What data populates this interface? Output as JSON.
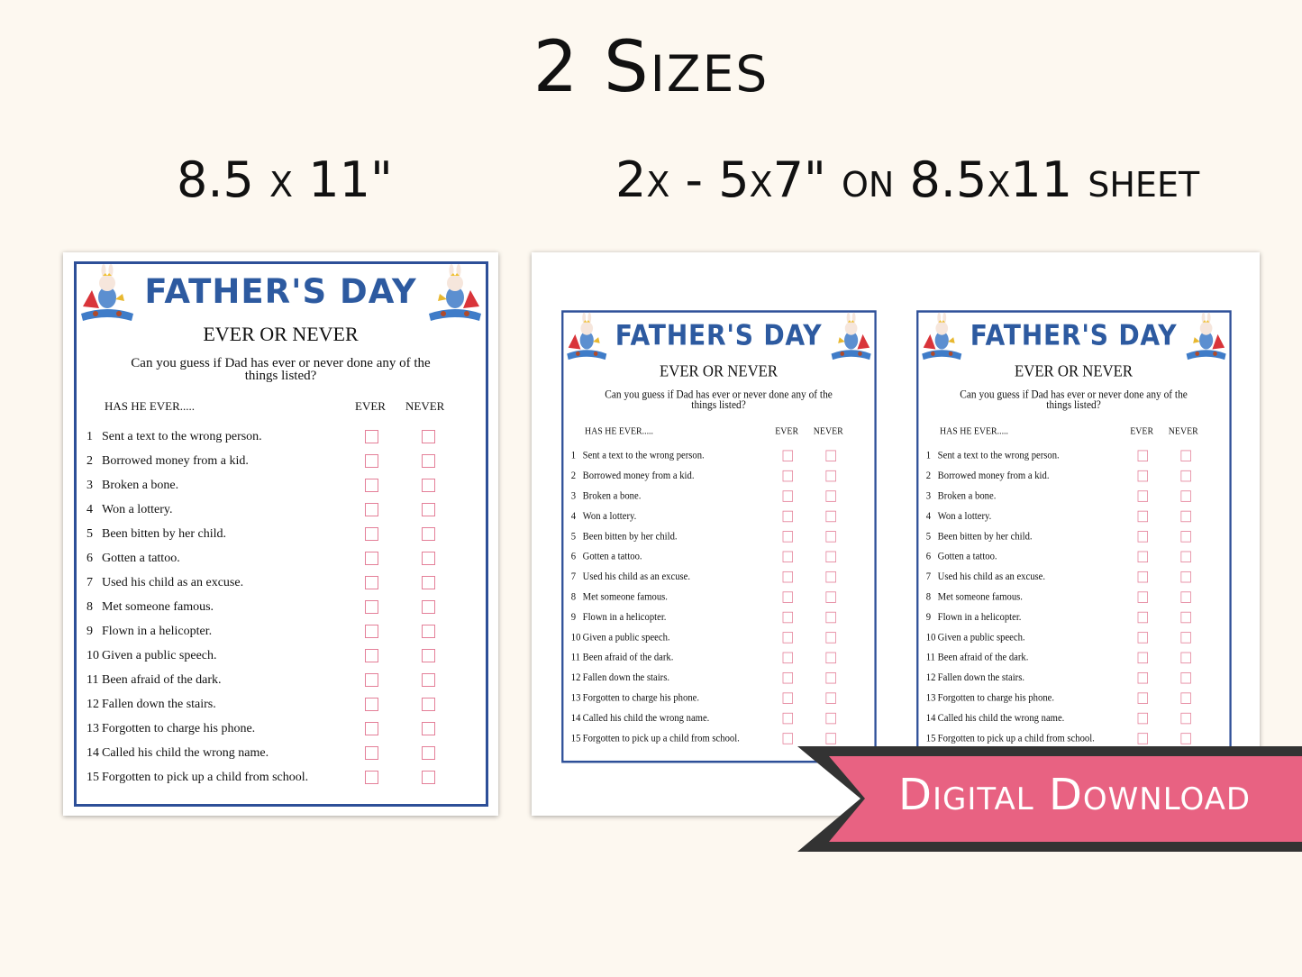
{
  "headline": "2 Sizes",
  "size_left": "8.5 x 11\"",
  "size_right": "2x - 5x7\" on 8.5x11 sheet",
  "banner": "Digital Download",
  "colors": {
    "background": "#fdf8f0",
    "border_blue": "#2d4f98",
    "title_blue": "#2d5aa0",
    "checkbox_pink": "#e47f98",
    "banner_pink": "#e86282",
    "banner_dark": "#333333"
  },
  "worksheet": {
    "title": "FATHER'S DAY",
    "subtitle": "EVER OR NEVER",
    "question": "Can you guess if Dad has ever or never done any of the things listed?",
    "col_prompt": "HAS HE EVER.....",
    "col_ever": "EVER",
    "col_never": "NEVER",
    "mascot_icon": "superhero-bunny-dad-icon",
    "items": [
      {
        "num": "1",
        "text": "Sent a text to the wrong person."
      },
      {
        "num": "2",
        "text": "Borrowed money from a kid."
      },
      {
        "num": "3",
        "text": "Broken a bone."
      },
      {
        "num": "4",
        "text": "Won a lottery."
      },
      {
        "num": "5",
        "text": "Been bitten by her child."
      },
      {
        "num": "6",
        "text": "Gotten a tattoo."
      },
      {
        "num": "7",
        "text": "Used his child as an excuse."
      },
      {
        "num": "8",
        "text": "Met someone famous."
      },
      {
        "num": "9",
        "text": "Flown in a helicopter."
      },
      {
        "num": "10",
        "text": "Given a public speech."
      },
      {
        "num": "11",
        "text": "Been afraid of the dark."
      },
      {
        "num": "12",
        "text": "Fallen down the stairs."
      },
      {
        "num": "13",
        "text": "Forgotten to charge his phone."
      },
      {
        "num": "14",
        "text": "Called his child the wrong name."
      },
      {
        "num": "15",
        "text": "Forgotten to pick up a child from school."
      }
    ]
  }
}
